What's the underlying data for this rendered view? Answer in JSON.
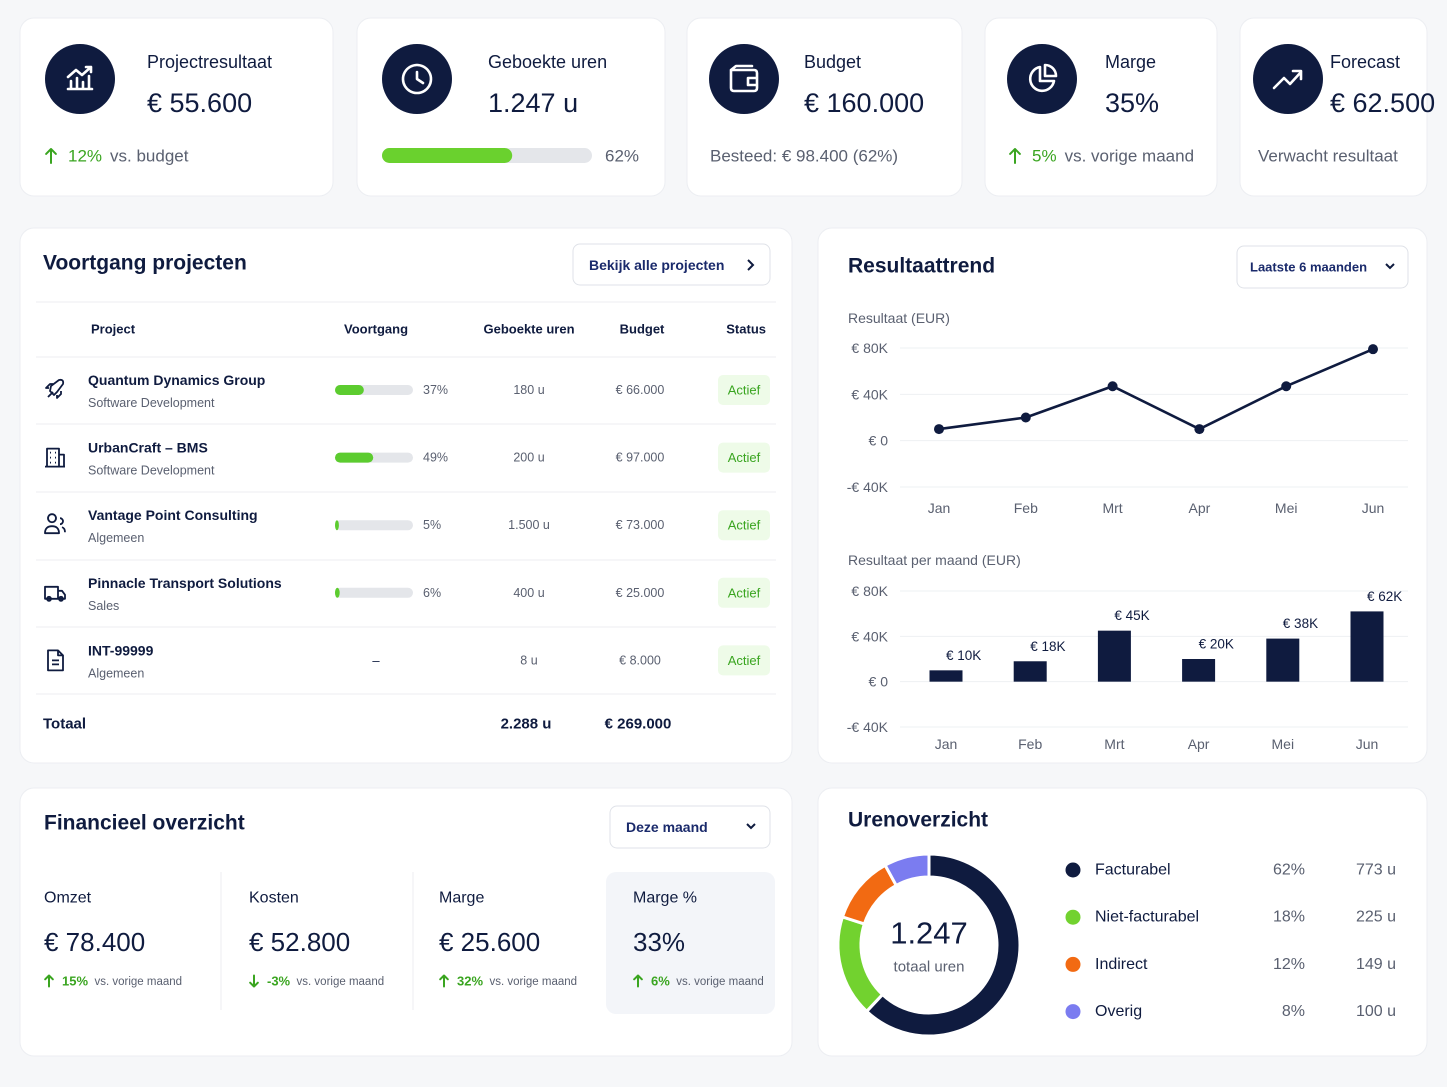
{
  "kpis": [
    {
      "title": "Projectresultaat",
      "value": "€ 55.600",
      "change": "12%",
      "note": "vs. budget"
    },
    {
      "title": "Geboekte uren",
      "value": "1.247 u",
      "progress": 62,
      "progress_label": "62%"
    },
    {
      "title": "Budget",
      "value": "€ 160.000",
      "note": "Besteed: € 98.400 (62%)"
    },
    {
      "title": "Marge",
      "value": "35%",
      "change": "5%",
      "note": "vs. vorige maand"
    },
    {
      "title": "Forecast",
      "value": "€ 62.500",
      "note": "Verwacht resultaat"
    }
  ],
  "projects": {
    "title": "Voortgang projecten",
    "button": "Bekijk alle projecten",
    "columns": [
      "Project",
      "Voortgang",
      "Geboekte uren",
      "Budget",
      "Status"
    ],
    "rows": [
      {
        "name": "Quantum Dynamics Group",
        "sub": "Software Development",
        "progress": 37,
        "progress_label": "37%",
        "hours": "180 u",
        "budget": "€ 66.000",
        "status": "Actief"
      },
      {
        "name": "UrbanCraft – BMS",
        "sub": "Software Development",
        "progress": 49,
        "progress_label": "49%",
        "hours": "200 u",
        "budget": "€ 97.000",
        "status": "Actief"
      },
      {
        "name": "Vantage Point Consulting",
        "sub": "Algemeen",
        "progress": 5,
        "progress_label": "5%",
        "hours": "1.500 u",
        "budget": "€ 73.000",
        "status": "Actief"
      },
      {
        "name": "Pinnacle Transport Solutions",
        "sub": "Sales",
        "progress": 6,
        "progress_label": "6%",
        "hours": "400 u",
        "budget": "€ 25.000",
        "status": "Actief"
      },
      {
        "name": "INT-99999",
        "sub": "Algemeen",
        "progress": null,
        "progress_label": "–",
        "hours": "8 u",
        "budget": "€ 8.000",
        "status": "Actief"
      }
    ],
    "total_label": "Totaal",
    "total_hours": "2.288 u",
    "total_budget": "€ 269.000"
  },
  "trend": {
    "title": "Resultaattrend",
    "period": "Laatste 6 maanden"
  },
  "chart_data": [
    {
      "type": "line",
      "title": "Resultaat (EUR)",
      "categories": [
        "Jan",
        "Feb",
        "Mrt",
        "Apr",
        "Mei",
        "Jun"
      ],
      "values": [
        10000,
        20000,
        47000,
        10000,
        47000,
        79000
      ],
      "color": "#0f1b3f",
      "ylim": [
        -40000,
        80000
      ],
      "yticks": [
        {
          "value": 80000,
          "label": "€ 80K"
        },
        {
          "value": 40000,
          "label": "€ 40K"
        },
        {
          "value": 0,
          "label": "€ 0"
        },
        {
          "value": -40000,
          "label": "-€ 40K"
        }
      ],
      "grid": true
    },
    {
      "type": "bar",
      "title": "Resultaat per maand (EUR)",
      "categories": [
        "Jan",
        "Feb",
        "Mrt",
        "Apr",
        "Mei",
        "Jun"
      ],
      "values": [
        10000,
        18000,
        45000,
        20000,
        38000,
        62000
      ],
      "value_labels": [
        "€ 10K",
        "€ 18K",
        "€ 45K",
        "€ 20K",
        "€ 38K",
        "€ 62K"
      ],
      "color": "#0f1b3f",
      "ylim": [
        -40000,
        80000
      ],
      "yticks": [
        {
          "value": 80000,
          "label": "€ 80K"
        },
        {
          "value": 40000,
          "label": "€ 40K"
        },
        {
          "value": 0,
          "label": "€ 0"
        },
        {
          "value": -40000,
          "label": "-€ 40K"
        }
      ],
      "grid": true
    },
    {
      "type": "donut",
      "title": "Urenoverzicht",
      "center_value": "1.247",
      "center_label": "totaal uren",
      "categories": [
        "Facturabel",
        "Niet-facturabel",
        "Indirect",
        "Overig"
      ],
      "values": [
        62,
        18,
        12,
        8
      ],
      "value_labels": [
        "62%",
        "18%",
        "12%",
        "8%"
      ],
      "hours": [
        "773 u",
        "225 u",
        "149 u",
        "100 u"
      ],
      "colors": [
        "#0f1b3f",
        "#72d22f",
        "#f26a12",
        "#7b7cf0"
      ]
    }
  ],
  "finance": {
    "title": "Financieel overzicht",
    "period": "Deze maand",
    "items": [
      {
        "label": "Omzet",
        "value": "€ 78.400",
        "change": "15%",
        "direction": "up",
        "note": "vs. vorige maand"
      },
      {
        "label": "Kosten",
        "value": "€ 52.800",
        "change": "-3%",
        "direction": "down",
        "note": "vs. vorige maand"
      },
      {
        "label": "Marge",
        "value": "€ 25.600",
        "change": "32%",
        "direction": "up",
        "note": "vs. vorige maand"
      },
      {
        "label": "Marge %",
        "value": "33%",
        "change": "6%",
        "direction": "up",
        "note": "vs. vorige maand",
        "highlight": true
      }
    ]
  }
}
